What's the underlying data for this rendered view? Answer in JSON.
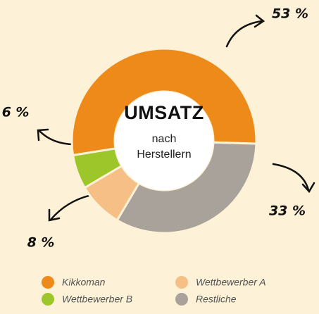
{
  "chart_data": {
    "type": "donut",
    "title": "UMSATZ",
    "subtitle": "nach Herstellern",
    "categories": [
      "Kikkoman",
      "Restliche",
      "Wettbewerber A",
      "Wettbewerber B"
    ],
    "values": [
      53,
      33,
      8,
      6
    ],
    "value_labels": [
      "53 %",
      "33 %",
      "8 %",
      "6 %"
    ],
    "colors": [
      "#ee8a1a",
      "#a8a29b",
      "#f6bf86",
      "#9cc62a"
    ]
  }
}
